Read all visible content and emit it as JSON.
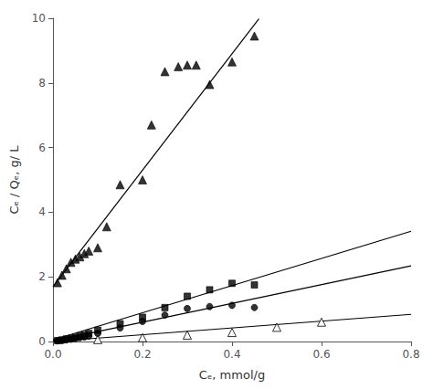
{
  "chart_data": {
    "type": "scatter",
    "xlabel": "Cₑ, mmol/g",
    "ylabel": "Cₑ / Qₑ, g/ L",
    "xlim": [
      0.0,
      0.8
    ],
    "ylim": [
      0,
      10
    ],
    "xticks": [
      {
        "value": 0,
        "label": "0.0"
      },
      0.2,
      0.4,
      0.6,
      0.8
    ],
    "yticks": [
      0,
      2,
      4,
      6,
      8,
      10
    ],
    "grid": false,
    "series": [
      {
        "type": "scatter",
        "marker": "triangle",
        "color": "black",
        "x": [
          0.01,
          0.02,
          0.03,
          0.04,
          0.05,
          0.06,
          0.07,
          0.08,
          0.1,
          0.12,
          0.15,
          0.2,
          0.22,
          0.25,
          0.28,
          0.3,
          0.32,
          0.35,
          0.4,
          0.45
        ],
        "values": [
          1.82,
          2.05,
          2.25,
          2.45,
          2.55,
          2.62,
          2.72,
          2.8,
          2.9,
          3.55,
          4.85,
          5.0,
          6.7,
          8.35,
          8.5,
          8.55,
          8.55,
          7.95,
          8.65,
          9.45
        ]
      },
      {
        "type": "scatter",
        "marker": "square",
        "color": "black",
        "x": [
          0.01,
          0.02,
          0.03,
          0.04,
          0.05,
          0.06,
          0.07,
          0.08,
          0.1,
          0.15,
          0.2,
          0.25,
          0.3,
          0.35,
          0.4,
          0.45
        ],
        "values": [
          0.03,
          0.05,
          0.08,
          0.1,
          0.13,
          0.17,
          0.2,
          0.25,
          0.35,
          0.55,
          0.75,
          1.05,
          1.4,
          1.6,
          1.8,
          1.75
        ]
      },
      {
        "type": "scatter",
        "marker": "circle",
        "color": "black",
        "x": [
          0.01,
          0.02,
          0.03,
          0.04,
          0.05,
          0.06,
          0.07,
          0.08,
          0.1,
          0.15,
          0.2,
          0.25,
          0.3,
          0.35,
          0.4,
          0.45
        ],
        "values": [
          0.02,
          0.03,
          0.05,
          0.07,
          0.09,
          0.12,
          0.14,
          0.17,
          0.25,
          0.42,
          0.62,
          0.82,
          1.02,
          1.08,
          1.12,
          1.05
        ]
      },
      {
        "type": "scatter",
        "marker": "triangle-open",
        "color": "black",
        "x": [
          0.1,
          0.2,
          0.3,
          0.4,
          0.5,
          0.6
        ],
        "values": [
          0.06,
          0.12,
          0.2,
          0.28,
          0.44,
          0.6
        ]
      },
      {
        "type": "line",
        "line_style": "solid",
        "color": "black",
        "x": [
          0.0,
          0.46
        ],
        "values": [
          1.7,
          9.98
        ]
      },
      {
        "type": "line",
        "line_style": "solid",
        "color": "black",
        "x": [
          0.0,
          0.8
        ],
        "values": [
          0.05,
          3.41
        ]
      },
      {
        "type": "line",
        "line_style": "solid",
        "color": "black",
        "x": [
          0.0,
          0.8
        ],
        "values": [
          0.02,
          2.34
        ]
      },
      {
        "type": "line",
        "line_style": "solid",
        "color": "black",
        "x": [
          0.0,
          0.8
        ],
        "values": [
          0.0,
          0.84
        ]
      }
    ]
  }
}
